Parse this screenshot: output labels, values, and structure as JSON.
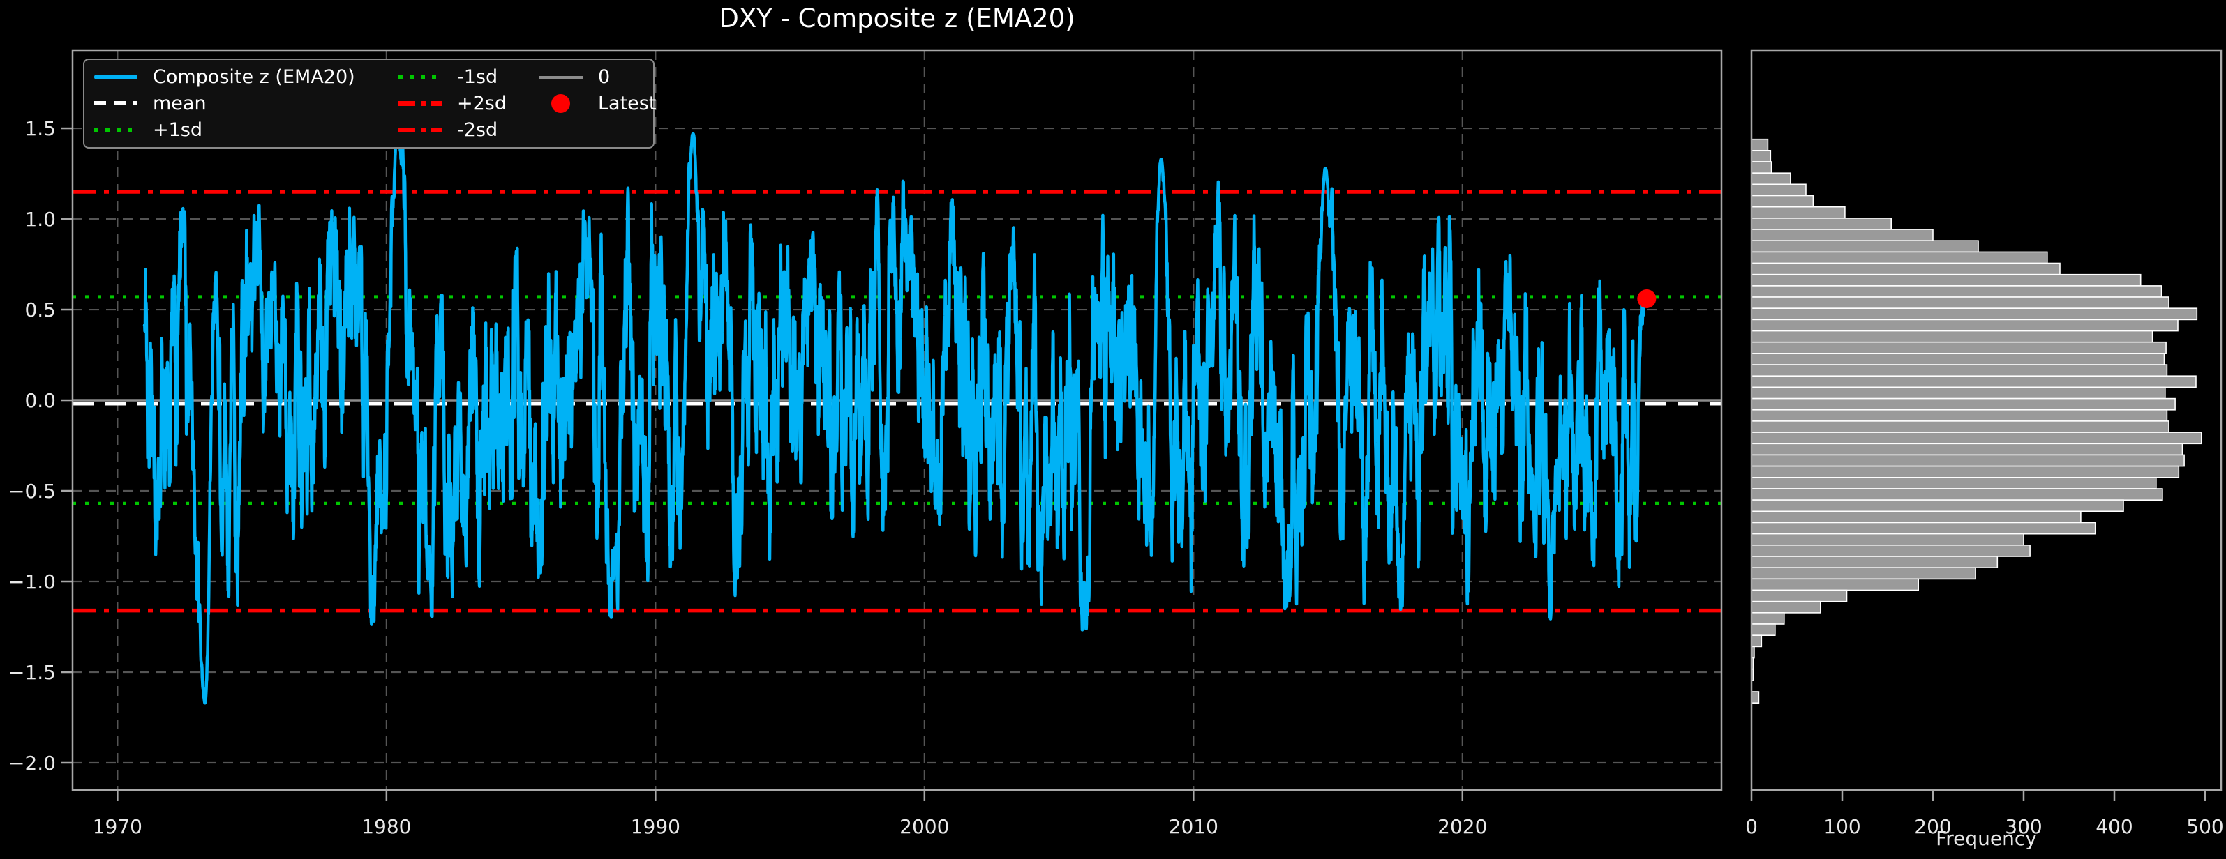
{
  "title": "DXY - Composite z (EMA20)",
  "colors": {
    "background": "#000000",
    "series": "#00B2F5",
    "mean": "#FFFFFF",
    "sd1": "#00C800",
    "sd2": "#FF0000",
    "zero": "#8C8C8C",
    "latest": "#FF0000",
    "grid": "#555555",
    "spine": "#A8A8A8",
    "tick_label": "#E8E8E8",
    "text": "#FFFFFF",
    "hist_bar": "#9A9A9A",
    "hist_bar_edge": "#FFFFFF",
    "legend_bg": "#101010",
    "legend_border": "#8A8A8A"
  },
  "legend": {
    "entries": [
      {
        "label": "Composite z (EMA20)",
        "style": "line-solid-cyan"
      },
      {
        "label": "mean",
        "style": "line-dashed-white"
      },
      {
        "label": "+1sd",
        "style": "line-dotted-green"
      },
      {
        "label": "-1sd",
        "style": "line-dotted-green"
      },
      {
        "label": "+2sd",
        "style": "line-dashdot-red"
      },
      {
        "label": "-2sd",
        "style": "line-dashdot-red"
      },
      {
        "label": "0",
        "style": "line-solid-gray"
      },
      {
        "label": "Latest",
        "style": "dot-red"
      }
    ]
  },
  "chart_data": [
    {
      "type": "line",
      "title": "DXY - Composite z (EMA20)",
      "xlabel": "",
      "ylabel": "",
      "xlim": [
        1968.33,
        2029.63
      ],
      "ylim": [
        -2.15,
        1.931
      ],
      "x_ticks": [
        1970,
        1980,
        1990,
        2000,
        2010,
        2020
      ],
      "x_tick_labels": [
        "1970",
        "1980",
        "1990",
        "2000",
        "2010",
        "2020"
      ],
      "y_ticks": [
        1.5,
        1.0,
        0.5,
        0.0,
        -0.5,
        -1.0,
        -1.5,
        -2.0
      ],
      "y_tick_labels": [
        "1.5",
        "1.0",
        "0.5",
        "0.0",
        "−0.5",
        "−1.0",
        "−1.5",
        "−2.0"
      ],
      "grid": true,
      "legend_position": "upper left",
      "series": [
        {
          "name": "Composite z (EMA20)",
          "type": "line",
          "color_key": "series",
          "x_start": 1971.0,
          "x_end": 2026.85,
          "generator": {
            "seed": 123457,
            "n": 6000,
            "ar_phi": 0.95,
            "ar_sigma": 0.181,
            "clip_k": 1.6,
            "anchor_width_years": 0.18,
            "anchors": [
              [
                1973.25,
                -1.67
              ],
              [
                1980.4,
                1.5
              ],
              [
                1991.4,
                1.47
              ],
              [
                2008.8,
                1.33
              ],
              [
                2014.9,
                1.28
              ],
              [
                2026.85,
                0.56
              ]
            ]
          },
          "stats": {
            "approx_sd": 0.58,
            "min": -1.67,
            "max": 1.5
          }
        },
        {
          "name": "mean",
          "type": "hline",
          "y": -0.02,
          "color_key": "mean",
          "linestyle": "dashed"
        },
        {
          "name": "+1sd",
          "type": "hline",
          "y": 0.57,
          "color_key": "sd1",
          "linestyle": "dotted"
        },
        {
          "name": "-1sd",
          "type": "hline",
          "y": -0.57,
          "color_key": "sd1",
          "linestyle": "dotted"
        },
        {
          "name": "+2sd",
          "type": "hline",
          "y": 1.15,
          "color_key": "sd2",
          "linestyle": "dashdot"
        },
        {
          "name": "-2sd",
          "type": "hline",
          "y": -1.16,
          "color_key": "sd2",
          "linestyle": "dashdot"
        },
        {
          "name": "0",
          "type": "hline",
          "y": 0.0,
          "color_key": "zero",
          "linestyle": "solid"
        },
        {
          "name": "Latest",
          "type": "point",
          "x": 2026.85,
          "y": 0.56,
          "color_key": "latest"
        }
      ]
    },
    {
      "type": "bar",
      "orientation": "horizontal",
      "xlabel": "Frequency",
      "ylabel": "",
      "xlim": [
        0,
        517.7
      ],
      "x_ticks": [
        0,
        100,
        200,
        300,
        400,
        500
      ],
      "x_tick_labels": [
        "0",
        "100",
        "200",
        "300",
        "400",
        "500"
      ],
      "bins": {
        "z_top": 1.44,
        "bin_height": 0.0622,
        "frequencies": [
          18,
          21,
          22,
          43,
          60,
          68,
          103,
          154,
          200,
          250,
          326,
          340,
          429,
          452,
          460,
          491,
          470,
          442,
          457,
          455,
          458,
          490,
          456,
          467,
          458,
          460,
          496,
          475,
          477,
          471,
          446,
          453,
          410,
          363,
          379,
          300,
          307,
          271,
          247,
          184,
          105,
          76,
          36,
          26,
          11,
          3,
          2,
          2,
          0,
          8
        ]
      }
    }
  ]
}
